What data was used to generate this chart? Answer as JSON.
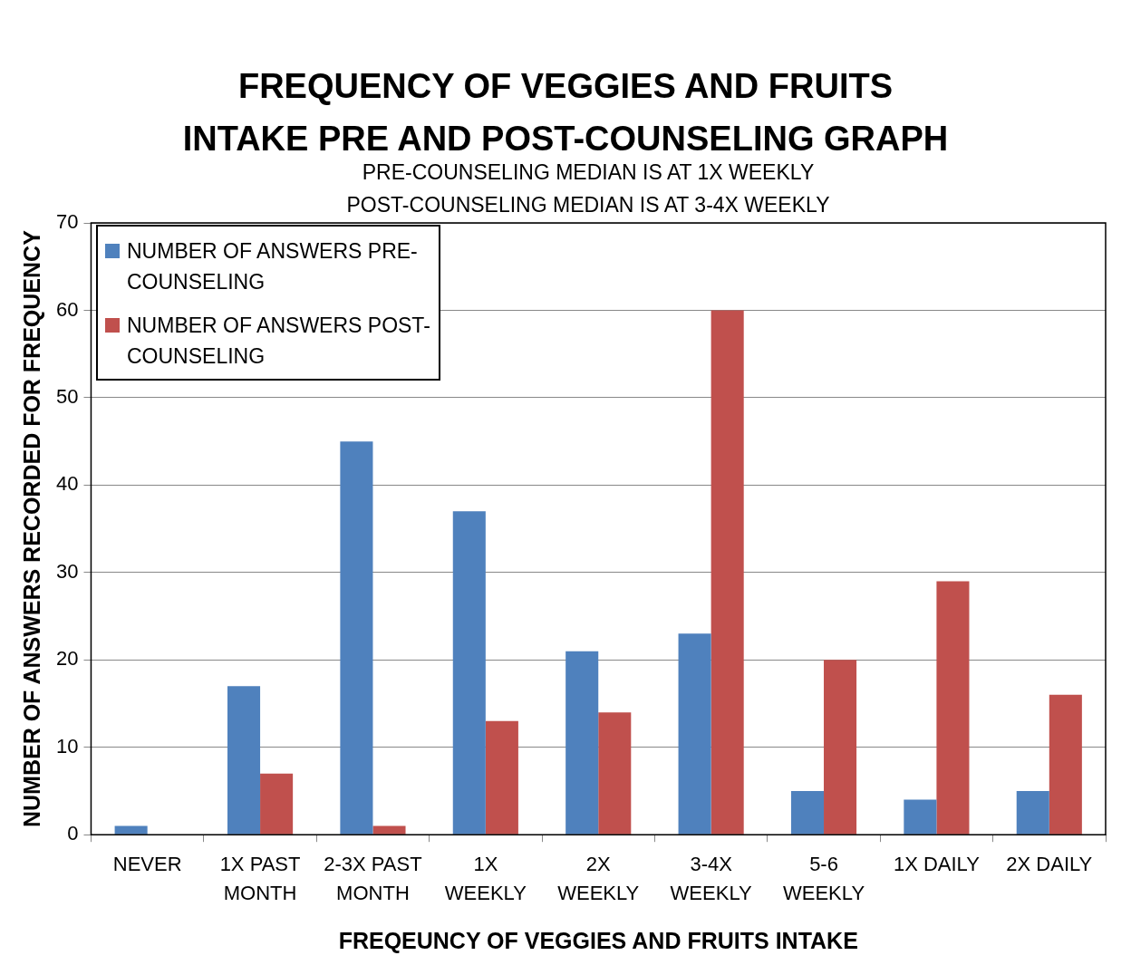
{
  "chart_data": {
    "type": "bar",
    "title": "FREQUENCY OF VEGGIES AND FRUITS INTAKE PRE AND POST-COUNSELING GRAPH",
    "subtitle": "PRE-COUNSELING MEDIAN IS AT 1X WEEKLY POST-COUNSELING MEDIAN IS AT 3-4X WEEKLY",
    "xlabel": "FREQEUNCY OF VEGGIES AND FRUITS INTAKE",
    "ylabel": "NUMBER OF ANSWERS RECORDED FOR FREQUENCY",
    "categories": [
      "NEVER",
      "1X PAST MONTH",
      "2-3X PAST MONTH",
      "1X WEEKLY",
      "2X WEEKLY",
      "3-4X WEEKLY",
      "5-6 WEEKLY",
      "1X DAILY",
      "2X DAILY"
    ],
    "series": [
      {
        "name": "NUMBER OF ANSWERS PRE-COUNSELING",
        "color": "#4f81bd",
        "values": [
          1,
          17,
          45,
          37,
          21,
          23,
          5,
          4,
          5
        ]
      },
      {
        "name": "NUMBER OF ANSWERS POST-COUNSELING",
        "color": "#c0504d",
        "values": [
          0,
          7,
          1,
          13,
          14,
          60,
          20,
          29,
          16
        ]
      }
    ],
    "ylim": [
      0,
      70
    ],
    "yticks": [
      0,
      10,
      20,
      30,
      40,
      50,
      60,
      70
    ],
    "grid": "y",
    "legend": "top left"
  }
}
